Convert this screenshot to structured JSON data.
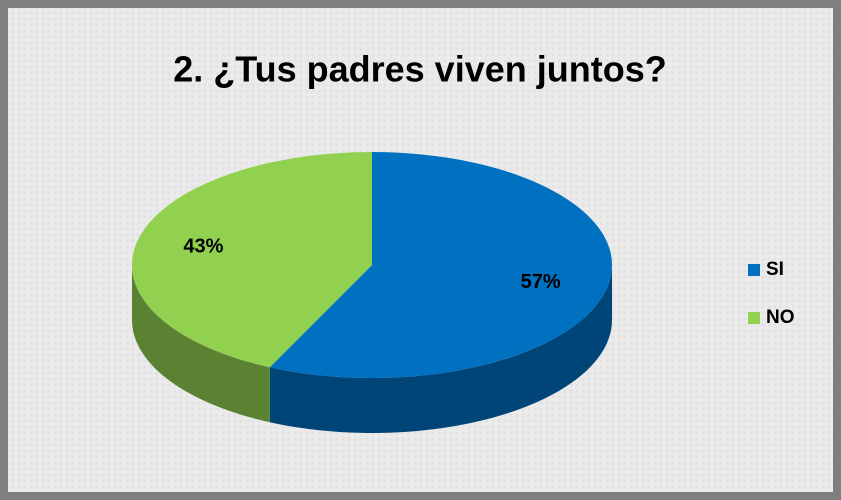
{
  "chart_data": {
    "type": "pie",
    "title": "2. ¿Tus padres viven juntos?",
    "categories": [
      "SI",
      "NO"
    ],
    "values": [
      57,
      43
    ],
    "value_labels": [
      "57%",
      "43%"
    ],
    "colors": [
      "#0070c0",
      "#92d050"
    ],
    "legend": "right"
  }
}
